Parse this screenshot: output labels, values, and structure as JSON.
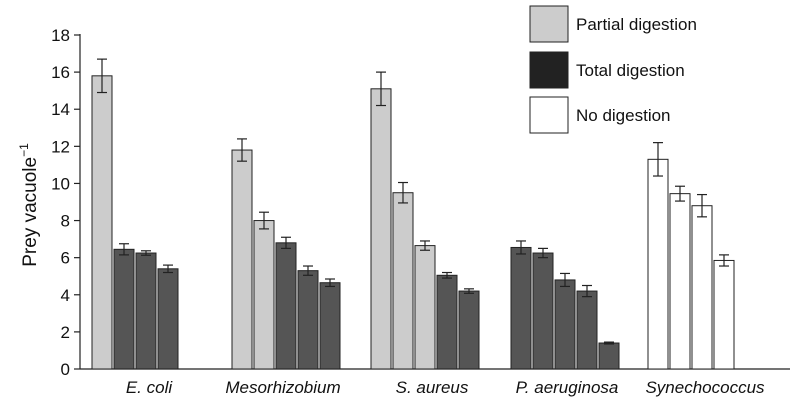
{
  "chart_data": {
    "type": "bar",
    "title": "",
    "xlabel": "",
    "ylabel": "Prey vacuole",
    "ylabel_superscript": "−1",
    "ylim": [
      0,
      18
    ],
    "yticks": [
      "0",
      "2",
      "4",
      "6",
      "8",
      "10",
      "12",
      "14",
      "16",
      "18"
    ],
    "grid": false,
    "legend": {
      "placement": "top-right",
      "entries": [
        {
          "key": "partial",
          "label": "Partial digestion",
          "color": "#cccccc"
        },
        {
          "key": "total",
          "label": "Total digestion",
          "color": "#222222"
        },
        {
          "key": "none",
          "label": "No digestion",
          "color": "#ffffff"
        }
      ]
    },
    "bar_colors": {
      "partial": "#cccccc",
      "total": "#555555",
      "none": "#ffffff"
    },
    "groups": [
      {
        "category": "E. coli",
        "bars": [
          {
            "value": 15.8,
            "error": 0.9,
            "digestion": "partial"
          },
          {
            "value": 6.45,
            "error": 0.3,
            "digestion": "total"
          },
          {
            "value": 6.25,
            "error": 0.12,
            "digestion": "total"
          },
          {
            "value": 5.4,
            "error": 0.2,
            "digestion": "total"
          }
        ]
      },
      {
        "category": "Mesorhizobium",
        "bars": [
          {
            "value": 11.8,
            "error": 0.6,
            "digestion": "partial"
          },
          {
            "value": 8.0,
            "error": 0.45,
            "digestion": "partial"
          },
          {
            "value": 6.8,
            "error": 0.3,
            "digestion": "total"
          },
          {
            "value": 5.3,
            "error": 0.25,
            "digestion": "total"
          },
          {
            "value": 4.65,
            "error": 0.2,
            "digestion": "total"
          }
        ]
      },
      {
        "category": "S. aureus",
        "bars": [
          {
            "value": 15.1,
            "error": 0.9,
            "digestion": "partial"
          },
          {
            "value": 9.5,
            "error": 0.55,
            "digestion": "partial"
          },
          {
            "value": 6.65,
            "error": 0.25,
            "digestion": "partial"
          },
          {
            "value": 5.05,
            "error": 0.15,
            "digestion": "total"
          },
          {
            "value": 4.2,
            "error": 0.12,
            "digestion": "total"
          }
        ]
      },
      {
        "category": "P. aeruginosa",
        "bars": [
          {
            "value": 6.55,
            "error": 0.35,
            "digestion": "total"
          },
          {
            "value": 6.25,
            "error": 0.25,
            "digestion": "total"
          },
          {
            "value": 4.8,
            "error": 0.35,
            "digestion": "total"
          },
          {
            "value": 4.2,
            "error": 0.3,
            "digestion": "total"
          },
          {
            "value": 1.4,
            "error": 0.05,
            "digestion": "total"
          }
        ]
      },
      {
        "category": "Synechococcus",
        "bars": [
          {
            "value": 11.3,
            "error": 0.9,
            "digestion": "none"
          },
          {
            "value": 9.45,
            "error": 0.4,
            "digestion": "none"
          },
          {
            "value": 8.8,
            "error": 0.6,
            "digestion": "none"
          },
          {
            "value": 5.85,
            "error": 0.3,
            "digestion": "none"
          }
        ]
      }
    ]
  }
}
